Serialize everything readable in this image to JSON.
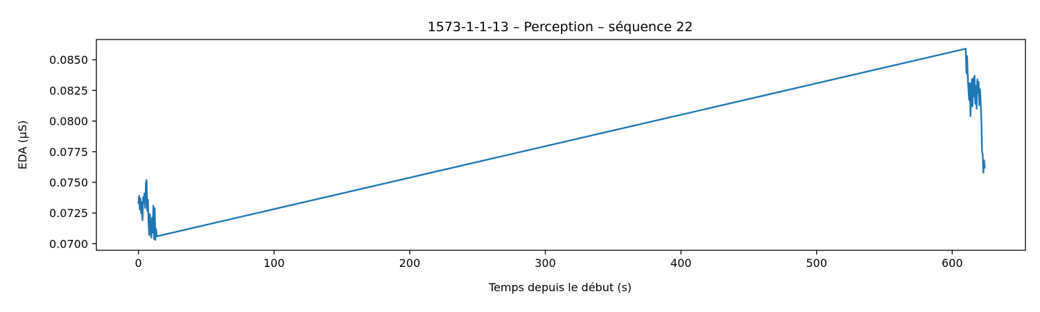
{
  "chart_data": {
    "type": "line",
    "title": "1573-1-1-13 – Perception – séquence 22",
    "xlabel": "Temps depuis le début (s)",
    "ylabel": "EDA (µS)",
    "xlim": [
      -31,
      654
    ],
    "ylim": [
      0.06946,
      0.08665
    ],
    "x_ticks": [
      0,
      100,
      200,
      300,
      400,
      500,
      600
    ],
    "y_ticks": [
      0.07,
      0.0725,
      0.075,
      0.0775,
      0.08,
      0.0825,
      0.085
    ],
    "y_tick_labels": [
      "0.0700",
      "0.0725",
      "0.0750",
      "0.0775",
      "0.0800",
      "0.0825",
      "0.0850"
    ],
    "grid": false,
    "line_color": "#1f77b4",
    "series": [
      {
        "x": [
          0,
          0.5,
          1,
          1.5,
          2,
          2.5,
          3,
          3.5,
          4,
          4.5,
          5,
          5.5,
          6,
          6.5,
          7,
          7.5,
          8,
          8.5,
          9,
          9.5,
          10,
          10.5,
          11,
          11.5,
          12,
          12.5,
          13,
          13.5,
          610,
          610.5,
          611,
          611.5,
          612,
          612.5,
          613,
          613.5,
          614,
          614.5,
          615,
          615.5,
          616,
          616.5,
          617,
          617.5,
          618,
          618.5,
          619,
          619.5,
          620,
          620.5,
          621,
          621.5,
          622,
          622.5,
          623,
          623.5,
          624
        ],
        "y": [
          0.0733,
          0.0739,
          0.0728,
          0.0737,
          0.0725,
          0.0734,
          0.0719,
          0.0738,
          0.0733,
          0.0741,
          0.0729,
          0.0749,
          0.0752,
          0.0727,
          0.0736,
          0.0716,
          0.0707,
          0.0724,
          0.0712,
          0.0705,
          0.0721,
          0.0709,
          0.0731,
          0.0704,
          0.0729,
          0.0703,
          0.0712,
          0.0706,
          0.0859,
          0.0839,
          0.0853,
          0.0836,
          0.0825,
          0.0817,
          0.0831,
          0.0804,
          0.0823,
          0.0834,
          0.0812,
          0.0835,
          0.082,
          0.0837,
          0.0814,
          0.0829,
          0.081,
          0.0834,
          0.0823,
          0.0832,
          0.0813,
          0.0826,
          0.0815,
          0.0802,
          0.0775,
          0.0773,
          0.0758,
          0.0768,
          0.0762
        ]
      }
    ]
  }
}
